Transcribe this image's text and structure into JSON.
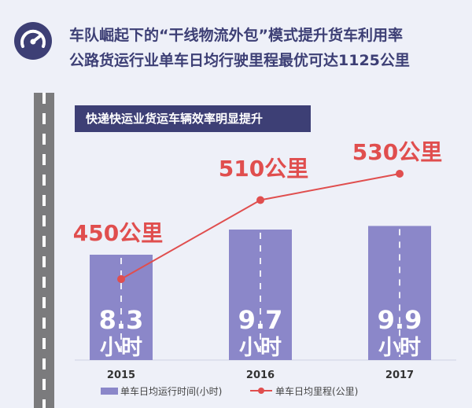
{
  "header": {
    "line1": "车队崛起下的“干线物流外包”模式提升货车利用率",
    "line2": "公路货运行业单车日均行驶里程最优可达1125公里",
    "icon": "speedometer-icon"
  },
  "chart_data": {
    "type": "bar",
    "title": "快递快运业货运车辆效率明显提升",
    "categories": [
      "2015",
      "2016",
      "2017"
    ],
    "series": [
      {
        "name": "单车日均运行时间(小时)",
        "type": "bar",
        "values": [
          8.3,
          9.7,
          9.9
        ],
        "labels": [
          "8.3",
          "9.7",
          "9.9"
        ],
        "unit_label": "小时",
        "color": "#8b87c9"
      },
      {
        "name": "单车日均里程(公里)",
        "type": "line",
        "values": [
          450,
          510,
          530
        ],
        "labels": [
          "450公里",
          "510公里",
          "530公里"
        ],
        "color": "#e04e4e"
      }
    ],
    "legend": "bottom"
  },
  "colors": {
    "background": "#eef0f8",
    "navy": "#3d3f75",
    "bar": "#8b87c9",
    "line": "#e04e4e",
    "road": "#7b7b7d"
  }
}
